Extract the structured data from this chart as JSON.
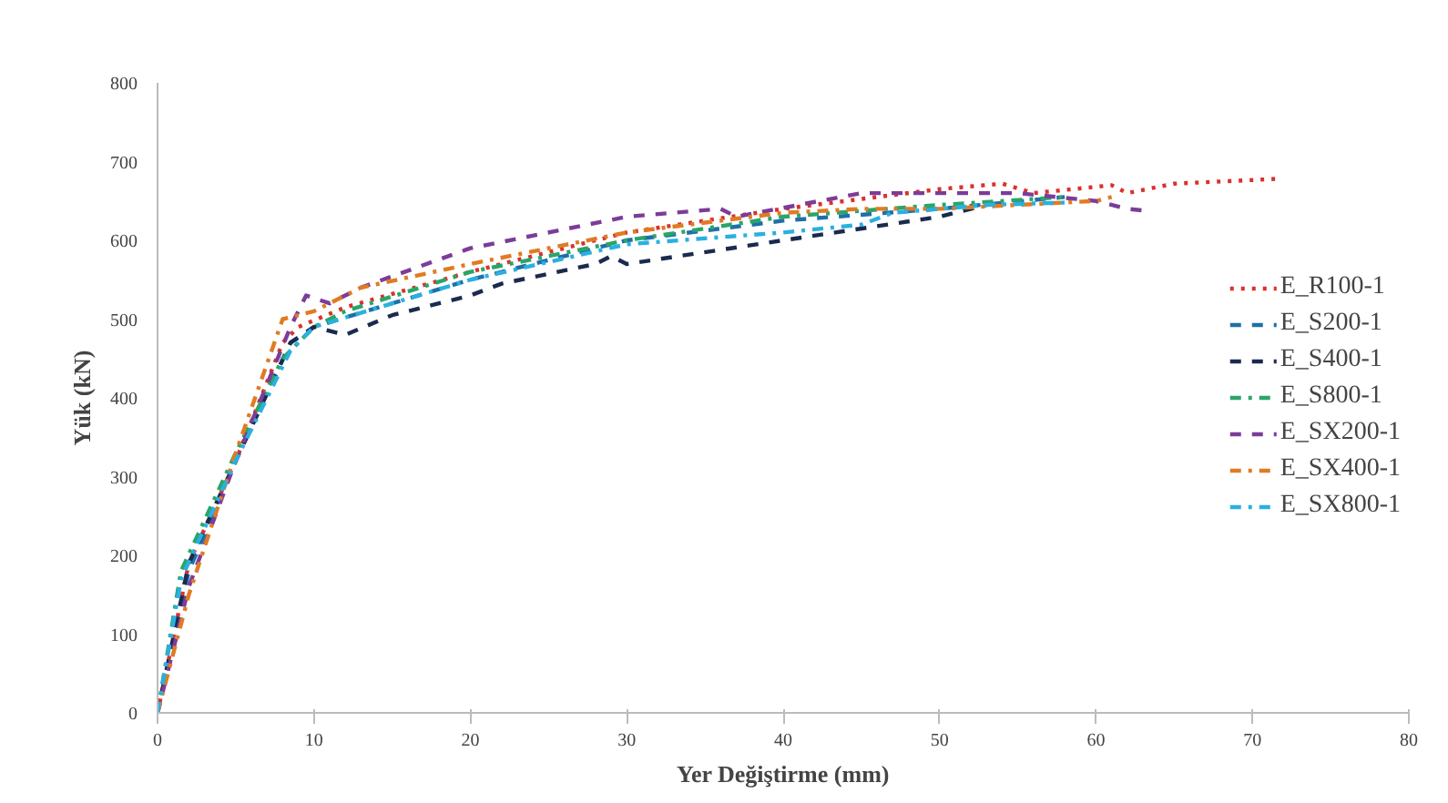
{
  "chart_data": {
    "type": "line",
    "xlabel": "Yer Değiştirme (mm)",
    "ylabel": "Yük (kN)",
    "xlim": [
      0,
      80
    ],
    "xticks": [
      0,
      10,
      20,
      30,
      40,
      50,
      60,
      70,
      80
    ],
    "ylim": [
      0,
      800
    ],
    "yticks": [
      0,
      100,
      200,
      300,
      400,
      500,
      600,
      700,
      800
    ],
    "grid": false,
    "legend": "right",
    "marker": "none",
    "series": [
      {
        "name": "E_R100-1",
        "color": "#d9312c",
        "line_style": "dotted",
        "x": [
          0,
          2,
          5,
          8,
          9,
          12,
          20,
          30,
          40,
          50,
          54,
          56,
          61,
          62,
          65,
          71.5
        ],
        "values": [
          0,
          190,
          320,
          470,
          490,
          515,
          560,
          610,
          640,
          665,
          672,
          660,
          670,
          660,
          672,
          678
        ]
      },
      {
        "name": "E_S200-1",
        "color": "#1f6fa8",
        "line_style": "dashed",
        "x": [
          0,
          2,
          5,
          8.5,
          10,
          20,
          30,
          40,
          50,
          58
        ],
        "values": [
          0,
          180,
          320,
          470,
          490,
          550,
          600,
          625,
          640,
          655
        ]
      },
      {
        "name": "E_S400-1",
        "color": "#1b2a4e",
        "line_style": "dashed",
        "x": [
          0,
          2,
          5,
          8.5,
          10,
          12,
          15,
          20,
          22,
          28,
          29,
          30,
          40,
          50,
          53
        ],
        "values": [
          0,
          190,
          320,
          470,
          490,
          480,
          505,
          530,
          545,
          570,
          580,
          570,
          600,
          630,
          645
        ]
      },
      {
        "name": "E_S800-1",
        "color": "#2aa56a",
        "line_style": "dashdot",
        "x": [
          0,
          1.5,
          5,
          8,
          10,
          12,
          20,
          30,
          40,
          50,
          58
        ],
        "values": [
          0,
          180,
          330,
          450,
          490,
          510,
          560,
          600,
          630,
          645,
          655
        ]
      },
      {
        "name": "E_SX200-1",
        "color": "#7d3c98",
        "line_style": "dashed",
        "x": [
          0,
          2,
          5,
          8.5,
          9.5,
          11,
          13,
          20,
          30,
          36,
          37,
          45,
          55,
          60,
          62,
          63.5
        ],
        "values": [
          0,
          160,
          320,
          490,
          530,
          520,
          540,
          590,
          630,
          640,
          630,
          660,
          660,
          650,
          640,
          637
        ]
      },
      {
        "name": "E_SX400-1",
        "color": "#e07b24",
        "line_style": "dashdot",
        "x": [
          0,
          2,
          5,
          8,
          10,
          13,
          20,
          30,
          40,
          45,
          50,
          60,
          61
        ],
        "values": [
          0,
          150,
          330,
          500,
          510,
          540,
          570,
          610,
          635,
          640,
          640,
          650,
          655
        ]
      },
      {
        "name": "E_SX800-1",
        "color": "#2ab0e0",
        "line_style": "dashdot",
        "x": [
          0,
          1.5,
          5,
          8.5,
          10,
          20,
          30,
          40,
          45,
          47,
          53,
          58
        ],
        "values": [
          0,
          170,
          320,
          460,
          490,
          550,
          595,
          610,
          620,
          635,
          645,
          648
        ]
      }
    ]
  }
}
